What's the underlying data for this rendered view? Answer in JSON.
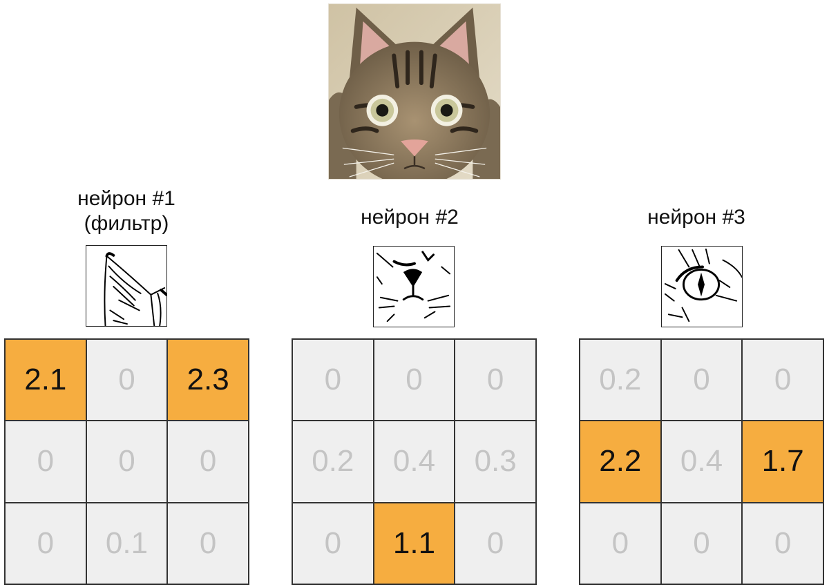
{
  "photo": {
    "subject": "cat",
    "colors": {
      "fur": "#8b7a60",
      "stripe": "#3a3024",
      "background": "#d9cfb8"
    }
  },
  "neurons": [
    {
      "title_lines": [
        "нейрон #1",
        "(фильтр)"
      ],
      "filter_icon": "cat-ear-icon",
      "grid": [
        [
          "2.1",
          "0",
          "2.3"
        ],
        [
          "0",
          "0",
          "0"
        ],
        [
          "0",
          "0.1",
          "0"
        ]
      ],
      "highlight": [
        [
          true,
          false,
          true
        ],
        [
          false,
          false,
          false
        ],
        [
          false,
          false,
          false
        ]
      ]
    },
    {
      "title_lines": [
        "нейрон #2"
      ],
      "filter_icon": "cat-nose-icon",
      "grid": [
        [
          "0",
          "0",
          "0"
        ],
        [
          "0.2",
          "0.4",
          "0.3"
        ],
        [
          "0",
          "1.1",
          "0"
        ]
      ],
      "highlight": [
        [
          false,
          false,
          false
        ],
        [
          false,
          false,
          false
        ],
        [
          false,
          true,
          false
        ]
      ]
    },
    {
      "title_lines": [
        "нейрон #3"
      ],
      "filter_icon": "cat-eye-icon",
      "grid": [
        [
          "0.2",
          "0",
          "0"
        ],
        [
          "2.2",
          "0.4",
          "1.7"
        ],
        [
          "0",
          "0",
          "0"
        ]
      ],
      "highlight": [
        [
          false,
          false,
          false
        ],
        [
          true,
          false,
          true
        ],
        [
          false,
          false,
          false
        ]
      ]
    }
  ],
  "colors": {
    "highlight": "#f6ad40",
    "cell": "#efefef",
    "muted_text": "#c4c4c4"
  }
}
